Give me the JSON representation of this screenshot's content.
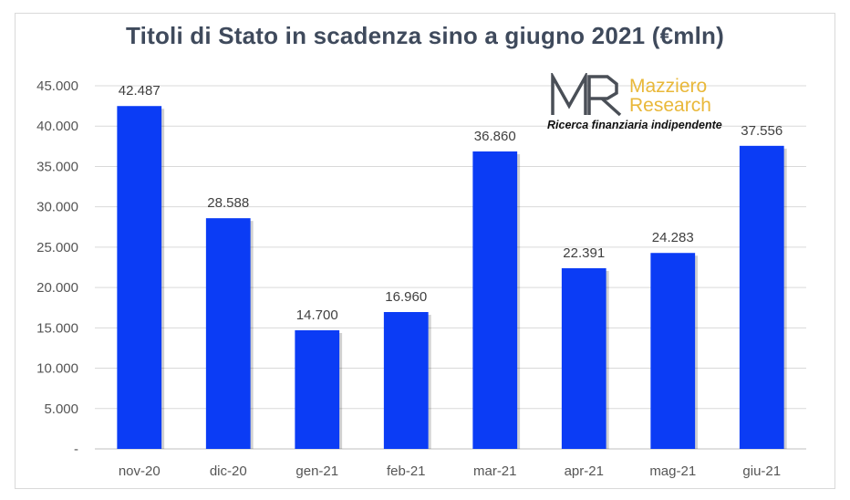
{
  "chart_data": {
    "type": "bar",
    "title": "Titoli di Stato in scadenza sino a giugno 2021 (€mln)",
    "categories": [
      "nov-20",
      "dic-20",
      "gen-21",
      "feb-21",
      "mar-21",
      "apr-21",
      "mag-21",
      "giu-21"
    ],
    "values": [
      42487,
      28588,
      14700,
      16960,
      36860,
      22391,
      24283,
      37556
    ],
    "data_labels": [
      "42.487",
      "28.588",
      "14.700",
      "16.960",
      "36.860",
      "22.391",
      "24.283",
      "37.556"
    ],
    "y_ticks": [
      0,
      5000,
      10000,
      15000,
      20000,
      25000,
      30000,
      35000,
      40000,
      45000
    ],
    "y_tick_labels": [
      "-",
      "5.000",
      "10.000",
      "15.000",
      "20.000",
      "25.000",
      "30.000",
      "35.000",
      "40.000",
      "45.000"
    ],
    "ylim": [
      0,
      45000
    ],
    "grid": true,
    "legend": "none",
    "bar_color": "#0b3cf5"
  },
  "logo": {
    "mark": "MR",
    "name_line1": "Mazziero",
    "name_line2": "Research",
    "tagline": "Ricerca finanziaria indipendente"
  }
}
